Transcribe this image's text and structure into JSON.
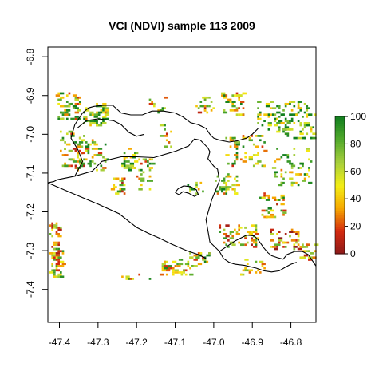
{
  "title": "VCI (NDVI) sample 113 2009",
  "x_axis": {
    "range": [
      -47.43,
      -46.735
    ],
    "ticks": [
      {
        "value": -47.4,
        "label": "-47.4"
      },
      {
        "value": -47.3,
        "label": "-47.3"
      },
      {
        "value": -47.2,
        "label": "-47.2"
      },
      {
        "value": -47.1,
        "label": "-47.1"
      },
      {
        "value": -47.0,
        "label": "-47.0"
      },
      {
        "value": -46.9,
        "label": "-46.9"
      },
      {
        "value": -46.8,
        "label": "-46.8"
      }
    ]
  },
  "y_axis": {
    "range": [
      -7.485,
      -6.775
    ],
    "ticks": [
      {
        "value": -6.8,
        "label": "-6.8"
      },
      {
        "value": -6.9,
        "label": "-6.9"
      },
      {
        "value": -7.0,
        "label": "-7.0"
      },
      {
        "value": -7.1,
        "label": "-7.1"
      },
      {
        "value": -7.2,
        "label": "-7.2"
      },
      {
        "value": -7.3,
        "label": "-7.3"
      },
      {
        "value": -7.4,
        "label": "-7.4"
      }
    ]
  },
  "legend": {
    "range": [
      0,
      100
    ],
    "colors": [
      "#8b1a1a",
      "#d42a0f",
      "#f6a800",
      "#f3ee15",
      "#a7cf3c",
      "#52a92c",
      "#127f1f"
    ],
    "ticks": [
      {
        "value": 0,
        "label": "0"
      },
      {
        "value": 20,
        "label": "20"
      },
      {
        "value": 40,
        "label": "40"
      },
      {
        "value": 60,
        "label": "60"
      },
      {
        "value": 80,
        "label": "80"
      },
      {
        "value": 100,
        "label": "100"
      }
    ]
  },
  "boundary": [
    [
      -47.405,
      -7.117
    ],
    [
      -47.36,
      -7.108
    ],
    [
      -47.315,
      -7.095
    ],
    [
      -47.29,
      -7.07
    ],
    [
      -47.24,
      -7.058
    ],
    [
      -47.2,
      -7.058
    ],
    [
      -47.155,
      -7.06
    ],
    [
      -47.1,
      -7.044
    ],
    [
      -47.065,
      -7.03
    ],
    [
      -47.05,
      -7.012
    ],
    [
      -47.035,
      -7.015
    ],
    [
      -47.015,
      -7.035
    ],
    [
      -47.01,
      -7.045
    ],
    [
      -47.015,
      -7.063
    ],
    [
      -47.0,
      -7.082
    ],
    [
      -46.99,
      -7.09
    ],
    [
      -46.985,
      -7.12
    ],
    [
      -47.005,
      -7.168
    ],
    [
      -47.02,
      -7.22
    ],
    [
      -47.01,
      -7.278
    ],
    [
      -46.985,
      -7.302
    ],
    [
      -46.945,
      -7.275
    ],
    [
      -46.915,
      -7.26
    ],
    [
      -46.895,
      -7.262
    ],
    [
      -46.885,
      -7.272
    ],
    [
      -46.87,
      -7.293
    ],
    [
      -46.86,
      -7.305
    ],
    [
      -46.85,
      -7.313
    ],
    [
      -46.835,
      -7.318
    ],
    [
      -46.82,
      -7.322
    ],
    [
      -46.81,
      -7.31
    ],
    [
      -46.79,
      -7.302
    ],
    [
      -46.77,
      -7.302
    ],
    [
      -46.755,
      -7.31
    ],
    [
      -46.74,
      -7.332
    ],
    [
      -46.735,
      -7.34
    ]
  ],
  "boundary_west": [
    [
      -47.43,
      -7.125
    ],
    [
      -47.415,
      -7.122
    ],
    [
      -47.405,
      -7.117
    ]
  ],
  "boundary_upper": [
    [
      -47.36,
      -7.108
    ],
    [
      -47.34,
      -7.07
    ],
    [
      -47.352,
      -7.04
    ],
    [
      -47.37,
      -7.01
    ],
    [
      -47.36,
      -6.975
    ],
    [
      -47.34,
      -6.945
    ],
    [
      -47.325,
      -6.932
    ],
    [
      -47.31,
      -6.928
    ],
    [
      -47.285,
      -6.925
    ],
    [
      -47.262,
      -6.925
    ],
    [
      -47.24,
      -6.945
    ],
    [
      -47.215,
      -6.95
    ],
    [
      -47.185,
      -6.95
    ],
    [
      -47.16,
      -6.94
    ],
    [
      -47.13,
      -6.94
    ],
    [
      -47.1,
      -6.945
    ],
    [
      -47.08,
      -6.955
    ],
    [
      -47.06,
      -6.97
    ],
    [
      -47.04,
      -6.975
    ],
    [
      -47.02,
      -6.985
    ],
    [
      -47.01,
      -7.0
    ],
    [
      -47.0,
      -7.01
    ],
    [
      -46.985,
      -7.015
    ],
    [
      -46.96,
      -7.02
    ],
    [
      -46.94,
      -7.017
    ],
    [
      -46.915,
      -7.01
    ],
    [
      -46.9,
      -7.0
    ],
    [
      -46.885,
      -6.985
    ]
  ],
  "boundary_south": [
    [
      -47.43,
      -7.125
    ],
    [
      -47.36,
      -7.155
    ],
    [
      -47.3,
      -7.18
    ],
    [
      -47.245,
      -7.205
    ],
    [
      -47.2,
      -7.24
    ],
    [
      -47.17,
      -7.255
    ],
    [
      -47.14,
      -7.268
    ],
    [
      -47.11,
      -7.283
    ],
    [
      -47.07,
      -7.3
    ],
    [
      -47.04,
      -7.31
    ],
    [
      -47.02,
      -7.32
    ]
  ],
  "boundary_loop_north": [
    [
      -47.355,
      -6.985
    ],
    [
      -47.33,
      -6.965
    ],
    [
      -47.3,
      -6.96
    ],
    [
      -47.26,
      -6.965
    ],
    [
      -47.24,
      -6.975
    ],
    [
      -47.22,
      -6.995
    ],
    [
      -47.2,
      -7.005
    ],
    [
      -47.18,
      -7.0
    ]
  ],
  "boundary_loop_small": [
    [
      -47.1,
      -7.15
    ],
    [
      -47.092,
      -7.14
    ],
    [
      -47.078,
      -7.133
    ],
    [
      -47.06,
      -7.135
    ],
    [
      -47.045,
      -7.143
    ],
    [
      -47.04,
      -7.155
    ],
    [
      -47.05,
      -7.16
    ],
    [
      -47.065,
      -7.152
    ],
    [
      -47.08,
      -7.148
    ],
    [
      -47.09,
      -7.156
    ],
    [
      -47.1,
      -7.15
    ]
  ],
  "boundary_east_branch": [
    [
      -46.985,
      -7.302
    ],
    [
      -46.975,
      -7.32
    ],
    [
      -46.96,
      -7.33
    ],
    [
      -46.945,
      -7.335
    ],
    [
      -46.92,
      -7.338
    ],
    [
      -46.89,
      -7.345
    ],
    [
      -46.87,
      -7.352
    ],
    [
      -46.85,
      -7.355
    ],
    [
      -46.83,
      -7.352
    ],
    [
      -46.815,
      -7.343
    ],
    [
      -46.8,
      -7.335
    ],
    [
      -46.785,
      -7.33
    ]
  ]
}
